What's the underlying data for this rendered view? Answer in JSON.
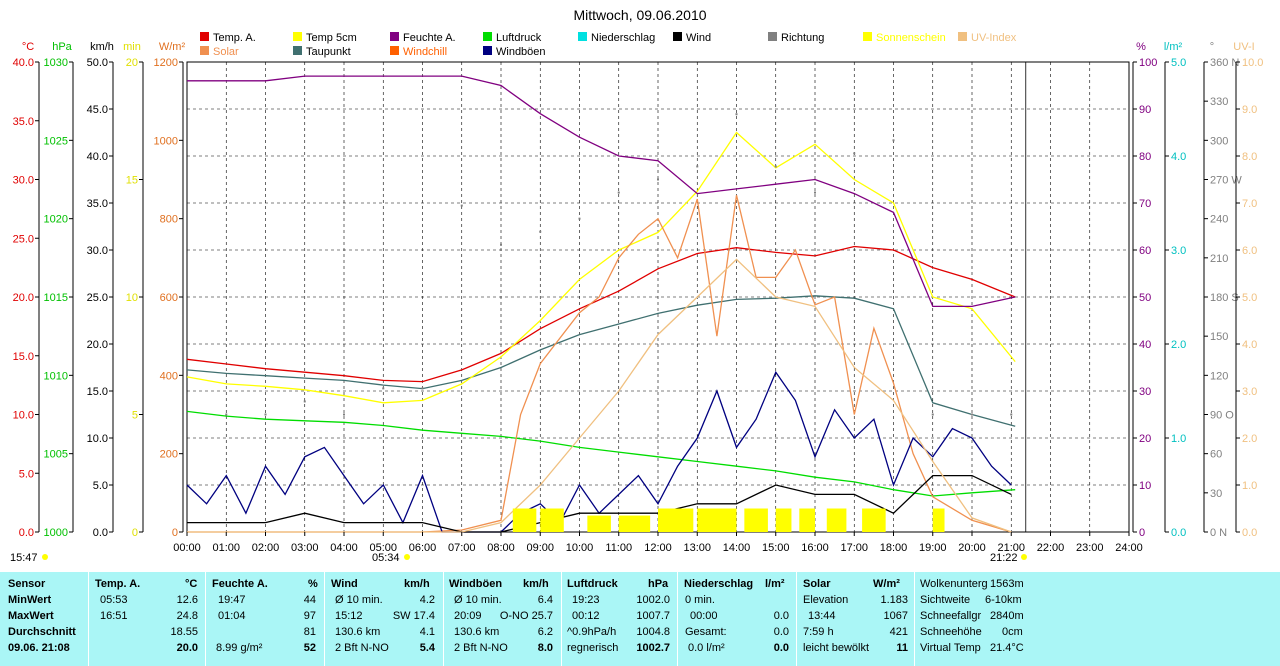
{
  "title": "Mittwoch, 09.06.2010",
  "legend": [
    {
      "label": "Temp. A.",
      "color": "#e00000",
      "row": 0,
      "col": 0
    },
    {
      "label": "Solar",
      "color": "#f09050",
      "row": 1,
      "col": 0
    },
    {
      "label": "Temp 5cm",
      "color": "#ffff00",
      "row": 0,
      "col": 1
    },
    {
      "label": "Taupunkt",
      "color": "#407070",
      "row": 1,
      "col": 1
    },
    {
      "label": "Feuchte A.",
      "color": "#800080",
      "row": 0,
      "col": 2
    },
    {
      "label": "Windchill",
      "color": "#ff6000",
      "row": 1,
      "col": 2
    },
    {
      "label": "Luftdruck",
      "color": "#00dd00",
      "row": 0,
      "col": 3
    },
    {
      "label": "Windböen",
      "color": "#000080",
      "row": 1,
      "col": 3
    },
    {
      "label": "Niederschlag",
      "color": "#00e0e0",
      "row": 0,
      "col": 4
    },
    {
      "label": "Wind",
      "color": "#000000",
      "row": 0,
      "col": 5
    },
    {
      "label": "Richtung",
      "color": "#808080",
      "row": 0,
      "col": 6
    },
    {
      "label": "Sonnenschein",
      "color": "#ffff00",
      "row": 0,
      "col": 7
    },
    {
      "label": "UV-Index",
      "color": "#f0c080",
      "row": 0,
      "col": 8
    }
  ],
  "axes_left": [
    {
      "unit": "°C",
      "color": "#e00000",
      "ticks": [
        "40.0",
        "35.0",
        "30.0",
        "25.0",
        "20.0",
        "15.0",
        "10.0",
        "5.0",
        "0.0"
      ]
    },
    {
      "unit": "hPa",
      "color": "#00c000",
      "ticks": [
        "1030",
        "1025",
        "1020",
        "1015",
        "1010",
        "1005",
        "1000"
      ]
    },
    {
      "unit": "km/h",
      "color": "#000000",
      "ticks": [
        "50.0",
        "45.0",
        "40.0",
        "35.0",
        "30.0",
        "25.0",
        "20.0",
        "15.0",
        "10.0",
        "5.0",
        "0.0"
      ]
    },
    {
      "unit": "min",
      "color": "#e0e000",
      "ticks": [
        "20",
        "15",
        "10",
        "5",
        "0"
      ]
    },
    {
      "unit": "W/m²",
      "color": "#e07020",
      "ticks": [
        "1200",
        "1000",
        "800",
        "600",
        "400",
        "200",
        "0"
      ]
    }
  ],
  "axes_right": [
    {
      "unit": "%",
      "color": "#800080",
      "ticks": [
        "100",
        "90",
        "80",
        "70",
        "60",
        "50",
        "40",
        "30",
        "20",
        "10",
        "0"
      ]
    },
    {
      "unit": "l/m²",
      "color": "#00c0c0",
      "ticks": [
        "5.0",
        "4.0",
        "3.0",
        "2.0",
        "1.0",
        "0.0"
      ]
    },
    {
      "unit": "°",
      "color": "#808080",
      "ticks": [
        "360 N",
        "330",
        "300",
        "270 W",
        "240",
        "210",
        "180 S",
        "150",
        "120",
        "90  O",
        "60",
        "30",
        "0   N"
      ]
    },
    {
      "unit": "UV-I",
      "color": "#f0c080",
      "ticks": [
        "10.0",
        "9.0",
        "8.0",
        "7.0",
        "6.0",
        "5.0",
        "4.0",
        "3.0",
        "2.0",
        "1.0",
        "0.0"
      ]
    }
  ],
  "sun_times": {
    "left": "15:47",
    "sunrise": "05:34",
    "now": "21:22"
  },
  "chart_data": {
    "type": "line",
    "title": "Mittwoch, 09.06.2010",
    "x_ticks": [
      "00:00",
      "01:00",
      "02:00",
      "03:00",
      "04:00",
      "05:00",
      "06:00",
      "07:00",
      "08:00",
      "09:00",
      "10:00",
      "11:00",
      "12:00",
      "13:00",
      "14:00",
      "15:00",
      "16:00",
      "17:00",
      "18:00",
      "19:00",
      "20:00",
      "21:00",
      "22:00",
      "23:00",
      "24:00"
    ],
    "xlim": [
      0,
      24
    ],
    "grid": true,
    "series": [
      {
        "name": "Temp. A.",
        "unit": "°C",
        "ylim": [
          0,
          40
        ],
        "color": "#e00000",
        "x": [
          0,
          1,
          2,
          3,
          4,
          5,
          6,
          7,
          8,
          9,
          10,
          11,
          12,
          13,
          14,
          15,
          16,
          17,
          18,
          19,
          20,
          21.1
        ],
        "y": [
          14.7,
          14.3,
          13.9,
          13.6,
          13.3,
          12.9,
          12.8,
          13.8,
          15.2,
          17.3,
          19.0,
          20.5,
          22.4,
          23.7,
          24.2,
          23.8,
          23.5,
          24.3,
          24.0,
          22.5,
          21.5,
          20.0
        ]
      },
      {
        "name": "Taupunkt",
        "unit": "°C",
        "ylim": [
          0,
          40
        ],
        "color": "#407070",
        "x": [
          0,
          1,
          2,
          3,
          4,
          5,
          6,
          7,
          8,
          9,
          10,
          11,
          12,
          13,
          14,
          15,
          16,
          17,
          18,
          19,
          20,
          21.1
        ],
        "y": [
          13.8,
          13.5,
          13.3,
          13.1,
          12.9,
          12.5,
          12.2,
          12.9,
          14.0,
          15.5,
          16.8,
          17.7,
          18.6,
          19.3,
          19.8,
          19.9,
          20.1,
          19.9,
          19.0,
          11.0,
          10.0,
          9.0
        ]
      },
      {
        "name": "Temp 5cm",
        "unit": "°C",
        "ylim": [
          0,
          40
        ],
        "color": "#ffff00",
        "x": [
          0,
          1,
          2,
          3,
          4,
          5,
          6,
          7,
          8,
          9,
          10,
          11,
          12,
          13,
          14,
          15,
          16,
          17,
          18,
          19,
          20,
          21.1
        ],
        "y": [
          13.2,
          12.6,
          12.4,
          12.1,
          11.6,
          11.0,
          11.2,
          12.6,
          14.9,
          18.0,
          21.5,
          24.0,
          25.5,
          29.0,
          34.0,
          31.0,
          33.0,
          30.0,
          28.0,
          20.0,
          19.0,
          14.5
        ]
      },
      {
        "name": "Feuchte A.",
        "unit": "%",
        "ylim": [
          0,
          100
        ],
        "color": "#800080",
        "x": [
          0,
          1,
          2,
          3,
          4,
          5,
          6,
          7,
          8,
          9,
          10,
          11,
          12,
          13,
          14,
          15,
          16,
          17,
          18,
          19,
          20,
          21.1
        ],
        "y": [
          96,
          96,
          96,
          97,
          97,
          97,
          97,
          97,
          95,
          89,
          84,
          80,
          79,
          72,
          73,
          74,
          75,
          72,
          68,
          48,
          48,
          50
        ]
      },
      {
        "name": "Luftdruck",
        "unit": "hPa",
        "ylim": [
          1000,
          1030
        ],
        "color": "#00dd00",
        "x": [
          0,
          1,
          2,
          3,
          4,
          5,
          6,
          7,
          8,
          9,
          10,
          11,
          12,
          13,
          14,
          15,
          16,
          17,
          18,
          19,
          20,
          21.1
        ],
        "y": [
          1007.7,
          1007.4,
          1007.2,
          1007.1,
          1007.0,
          1006.8,
          1006.5,
          1006.3,
          1006.1,
          1005.8,
          1005.4,
          1005.1,
          1004.8,
          1004.5,
          1004.2,
          1003.9,
          1003.5,
          1003.2,
          1002.7,
          1002.3,
          1002.5,
          1002.7
        ]
      },
      {
        "name": "Solar",
        "unit": "W/m²",
        "ylim": [
          0,
          1200
        ],
        "color": "#f09050",
        "x": [
          0,
          4,
          6,
          7,
          8,
          8.5,
          9,
          10,
          10.5,
          11,
          11.5,
          12,
          12.5,
          13,
          13.5,
          14,
          14.5,
          15,
          15.5,
          16,
          16.5,
          17,
          17.5,
          18,
          18.5,
          19,
          20,
          21
        ],
        "y": [
          0,
          0,
          0,
          5,
          30,
          300,
          430,
          560,
          600,
          700,
          760,
          800,
          700,
          850,
          500,
          860,
          650,
          650,
          720,
          580,
          600,
          300,
          520,
          380,
          200,
          90,
          30,
          0
        ]
      },
      {
        "name": "Windböen",
        "unit": "km/h",
        "ylim": [
          0,
          50
        ],
        "color": "#000080",
        "x": [
          0,
          0.5,
          1,
          1.5,
          2,
          2.5,
          3,
          3.5,
          4,
          4.5,
          5,
          5.5,
          6,
          6.5,
          7,
          7.5,
          8,
          8.5,
          9,
          9.5,
          10,
          10.5,
          11,
          11.5,
          12,
          12.5,
          13,
          13.5,
          14,
          14.5,
          15,
          15.5,
          16,
          16.5,
          17,
          17.5,
          18,
          18.5,
          19,
          19.5,
          20,
          20.5,
          21
        ],
        "y": [
          5,
          3,
          6,
          2,
          7,
          4,
          8,
          9,
          6,
          3,
          5,
          1,
          6,
          0,
          0,
          0,
          0,
          2,
          3,
          1,
          5,
          2,
          4,
          6,
          3,
          7,
          10,
          15,
          9,
          12,
          17,
          14,
          8,
          13,
          10,
          12,
          5,
          10,
          8,
          11,
          10,
          7,
          5
        ]
      },
      {
        "name": "Wind",
        "unit": "km/h",
        "ylim": [
          0,
          50
        ],
        "color": "#000000",
        "x": [
          0,
          1,
          2,
          3,
          4,
          5,
          6,
          7,
          8,
          9,
          10,
          11,
          12,
          13,
          14,
          15,
          16,
          17,
          18,
          19,
          20,
          21
        ],
        "y": [
          1,
          1,
          1,
          2,
          1,
          1,
          1,
          0,
          0,
          1,
          2,
          2,
          2,
          3,
          3,
          5,
          4,
          4,
          2,
          6,
          6,
          4
        ]
      },
      {
        "name": "Richtung",
        "unit": "°",
        "ylim": [
          0,
          360
        ],
        "color": "#808080",
        "x": [
          0,
          1,
          2,
          3,
          4,
          5,
          6,
          7,
          8,
          9,
          10,
          11,
          12,
          13,
          14,
          15,
          16,
          17,
          18,
          19,
          20,
          21
        ],
        "y": [
          110,
          90,
          90,
          100,
          90,
          110,
          110,
          250,
          220,
          230,
          240,
          260,
          270,
          280,
          320,
          280,
          260,
          290,
          300,
          90,
          90,
          90
        ]
      },
      {
        "name": "UV-Index",
        "unit": "UV-I",
        "ylim": [
          0,
          10
        ],
        "color": "#f0c080",
        "x": [
          0,
          5,
          7,
          8,
          9,
          10,
          11,
          12,
          13,
          14,
          15,
          16,
          17,
          18,
          19,
          20,
          21
        ],
        "y": [
          0,
          0,
          0,
          0.2,
          1.0,
          2.0,
          3.0,
          4.2,
          5.0,
          5.8,
          5.0,
          4.8,
          3.5,
          2.8,
          1.5,
          0.3,
          0
        ]
      },
      {
        "name": "Sonnenschein",
        "unit": "min",
        "ylim": [
          0,
          20
        ],
        "color": "#ffff00",
        "bars_start": [
          8.3,
          9.0,
          10.2,
          11.0,
          12.0,
          13.0,
          14.2,
          15.0,
          15.6,
          16.3,
          17.2,
          19.0
        ],
        "bars_end": [
          8.9,
          9.6,
          10.8,
          11.8,
          12.9,
          14.0,
          14.8,
          15.4,
          16.0,
          16.8,
          17.8,
          19.3
        ],
        "y": [
          1,
          1,
          0.7,
          0.7,
          1,
          1,
          1,
          1,
          1,
          1,
          1,
          1
        ]
      }
    ]
  },
  "summary": {
    "col_sensor": {
      "h": "Sensor",
      "r1": "MinWert",
      "r2": "MaxWert",
      "r3": "Durchschnitt",
      "r4": "09.06. 21:08"
    },
    "col_temp": {
      "h": "Temp. A.",
      "u": "°C",
      "r1a": "05:53",
      "r1b": "12.6",
      "r2a": "16:51",
      "r2b": "24.8",
      "r3b": "18.55",
      "r4b": "20.0"
    },
    "col_feuchte": {
      "h": "Feuchte A.",
      "u": "%",
      "r1a": "19:47",
      "r1b": "44",
      "r2a": "01:04",
      "r2b": "97",
      "r3b": "81",
      "r4a": "8.99 g/m²",
      "r4b": "52"
    },
    "col_wind": {
      "h": "Wind",
      "u": "km/h",
      "r1a": "Ø 10 min.",
      "r1b": "4.2",
      "r2a": "15:12",
      "r2m": "SW 17.4",
      "r3a": "130.6 km",
      "r3b": "4.1",
      "r4a": "2 Bft N-NO",
      "r4b": "5.4"
    },
    "col_boeen": {
      "h": "Windböen",
      "u": "km/h",
      "r1a": "Ø 10 min.",
      "r1b": "6.4",
      "r2a": "20:09",
      "r2m": "O-NO 25.7",
      "r3a": "130.6 km",
      "r3b": "6.2",
      "r4a": "2 Bft N-NO",
      "r4b": "8.0"
    },
    "col_druck": {
      "h": "Luftdruck",
      "u": "hPa",
      "r1a": "19:23",
      "r1b": "1002.0",
      "r2a": "00:12",
      "r2b": "1007.7",
      "r3a": "^0.9hPa/h",
      "r3b": "1004.8",
      "r4a": "regnerisch",
      "r4b": "1002.7"
    },
    "col_nieder": {
      "h": "Niederschlag",
      "u": "l/m²",
      "r1a": "0 min.",
      "r2a": "00:00",
      "r2b": "0.0",
      "r3a": "Gesamt:",
      "r3b": "0.0",
      "r4a": "0.0 l/m²",
      "r4b": "0.0"
    },
    "col_solar": {
      "h": "Solar",
      "u": "W/m²",
      "r1a": "Elevation",
      "r1b": "1.183",
      "r2a": "13:44",
      "r2b": "1067",
      "r3a": "7:59 h",
      "r3b": "421",
      "r4a": "leicht bewölkt",
      "r4b": "11"
    },
    "col_extra": {
      "r0a": "Wolkenunterg",
      "r0b": "1563m",
      "r1a": "Sichtweite",
      "r1b": "6-10km",
      "r2a": "Schneefallgr",
      "r2b": "2840m",
      "r3a": "Schneehöhe",
      "r3b": "0cm",
      "r4a": "Virtual Temp",
      "r4b": "21.4°C"
    }
  }
}
